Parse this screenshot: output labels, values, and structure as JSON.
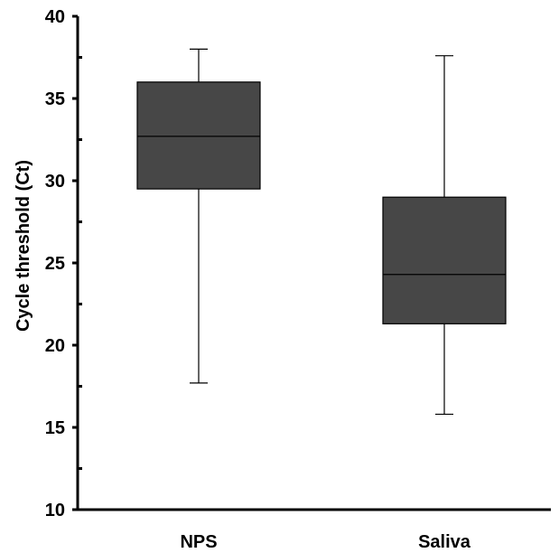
{
  "chart_data": {
    "type": "box",
    "title": "",
    "xlabel": "",
    "ylabel": "Cycle threshold (Ct)",
    "ylim": [
      10,
      40
    ],
    "yticks": [
      10,
      15,
      20,
      25,
      30,
      35,
      40
    ],
    "yminor_ticks": [
      12.5,
      17.5,
      22.5,
      27.5,
      32.5,
      37.5
    ],
    "categories": [
      "NPS",
      "Saliva"
    ],
    "series": [
      {
        "values": [
          {
            "category": "NPS",
            "min": 17.7,
            "q1": 29.5,
            "median": 32.7,
            "q3": 36.0,
            "max": 38.0
          },
          {
            "category": "Saliva",
            "min": 15.8,
            "q1": 21.3,
            "median": 24.3,
            "q3": 29.0,
            "max": 37.6
          }
        ]
      }
    ],
    "box_color": "#474747",
    "grid": false,
    "legend": "none"
  }
}
